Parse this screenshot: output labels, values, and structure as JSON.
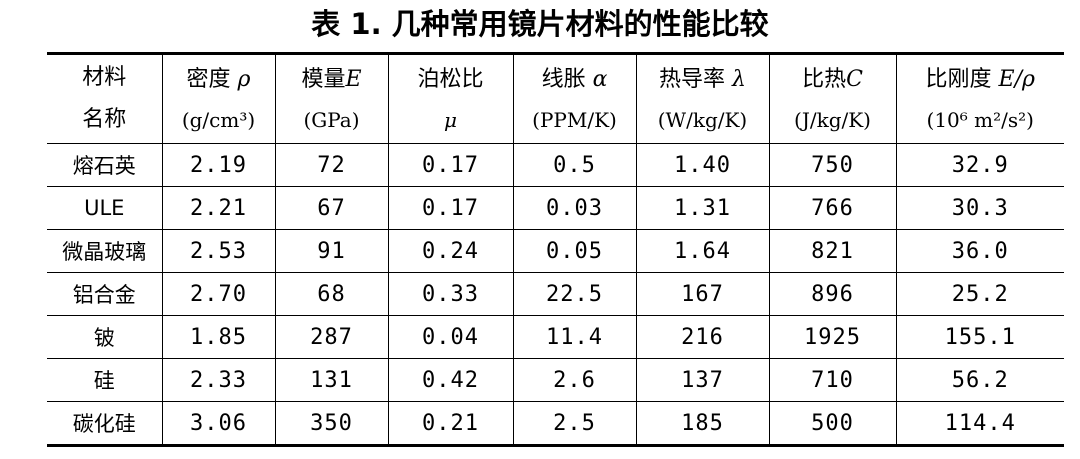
{
  "title": "表 1. 几种常用镜片材料的性能比较",
  "columns": [
    {
      "line1": "材料",
      "line1_sym": "",
      "line2": "名称"
    },
    {
      "line1": "密度 ",
      "line1_sym": "ρ",
      "line2": "(g/cm³)"
    },
    {
      "line1": "模量",
      "line1_sym": "E",
      "line2": "(GPa)"
    },
    {
      "line1": "泊松比",
      "line1_sym": "",
      "line2": "μ"
    },
    {
      "line1": "线胀 ",
      "line1_sym": "α",
      "line2": "(PPM/K)"
    },
    {
      "line1": "热导率 ",
      "line1_sym": "λ",
      "line2": "(W/kg/K)"
    },
    {
      "line1": "比热",
      "line1_sym": "C",
      "line2": "(J/kg/K)"
    },
    {
      "line1": "比刚度 ",
      "line1_sym": "E/ρ",
      "line2": "(10⁶ m²/s²)"
    }
  ],
  "rows": [
    [
      "熔石英",
      "2.19",
      "72",
      "0.17",
      "0.5",
      "1.40",
      "750",
      "32.9"
    ],
    [
      "ULE",
      "2.21",
      "67",
      "0.17",
      "0.03",
      "1.31",
      "766",
      "30.3"
    ],
    [
      "微晶玻璃",
      "2.53",
      "91",
      "0.24",
      "0.05",
      "1.64",
      "821",
      "36.0"
    ],
    [
      "铝合金",
      "2.70",
      "68",
      "0.33",
      "22.5",
      "167",
      "896",
      "25.2"
    ],
    [
      "铍",
      "1.85",
      "287",
      "0.04",
      "11.4",
      "216",
      "1925",
      "155.1"
    ],
    [
      "硅",
      "2.33",
      "131",
      "0.42",
      "2.6",
      "137",
      "710",
      "56.2"
    ],
    [
      "碳化硅",
      "3.06",
      "350",
      "0.21",
      "2.5",
      "185",
      "500",
      "114.4"
    ]
  ]
}
